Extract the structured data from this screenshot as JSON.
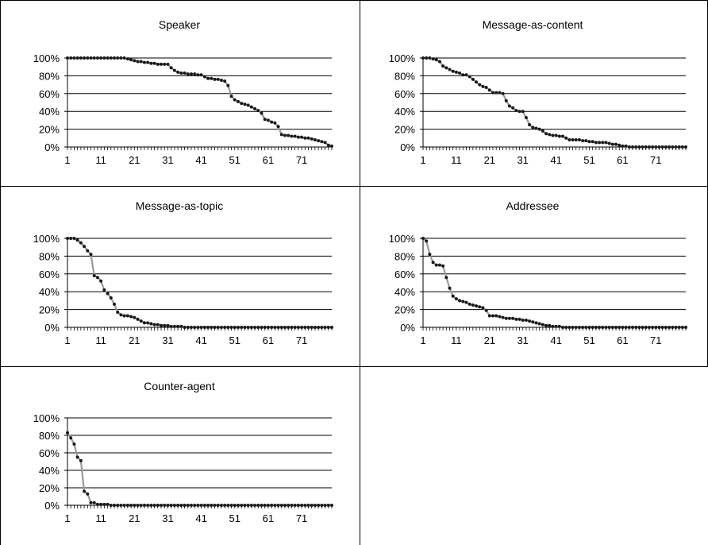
{
  "chart_data": [
    {
      "type": "line",
      "title": "Speaker",
      "xlabel": "",
      "ylabel": "",
      "ylim": [
        0,
        1
      ],
      "yticks": [
        "0%",
        "20%",
        "40%",
        "60%",
        "80%",
        "100%"
      ],
      "xticks": [
        1,
        11,
        21,
        31,
        41,
        51,
        61,
        71
      ],
      "x": [
        1,
        2,
        3,
        4,
        5,
        6,
        7,
        8,
        9,
        10,
        11,
        12,
        13,
        14,
        15,
        16,
        17,
        18,
        19,
        20,
        21,
        22,
        23,
        24,
        25,
        26,
        27,
        28,
        29,
        30,
        31,
        32,
        33,
        34,
        35,
        36,
        37,
        38,
        39,
        40,
        41,
        42,
        43,
        44,
        45,
        46,
        47,
        48,
        49,
        50,
        51,
        52,
        53,
        54,
        55,
        56,
        57,
        58,
        59,
        60,
        61,
        62,
        63,
        64,
        65,
        66,
        67,
        68,
        69,
        70,
        71,
        72,
        73,
        74,
        75,
        76,
        77,
        78,
        79,
        80
      ],
      "values": [
        1,
        1,
        1,
        1,
        1,
        1,
        1,
        1,
        1,
        1,
        1,
        1,
        1,
        1,
        1,
        1,
        1,
        1,
        0.99,
        0.98,
        0.97,
        0.96,
        0.96,
        0.95,
        0.95,
        0.94,
        0.94,
        0.93,
        0.93,
        0.93,
        0.93,
        0.89,
        0.86,
        0.84,
        0.83,
        0.83,
        0.82,
        0.82,
        0.82,
        0.81,
        0.81,
        0.79,
        0.77,
        0.77,
        0.76,
        0.76,
        0.75,
        0.74,
        0.69,
        0.57,
        0.53,
        0.51,
        0.49,
        0.48,
        0.47,
        0.45,
        0.43,
        0.41,
        0.38,
        0.31,
        0.3,
        0.28,
        0.27,
        0.23,
        0.14,
        0.13,
        0.13,
        0.12,
        0.12,
        0.11,
        0.11,
        0.1,
        0.1,
        0.09,
        0.08,
        0.07,
        0.06,
        0.05,
        0.02,
        0.01
      ]
    },
    {
      "type": "line",
      "title": "Message-as-content",
      "xlabel": "",
      "ylabel": "",
      "ylim": [
        0,
        1
      ],
      "yticks": [
        "0%",
        "20%",
        "40%",
        "60%",
        "80%",
        "100%"
      ],
      "xticks": [
        1,
        11,
        21,
        31,
        41,
        51,
        61,
        71
      ],
      "x": [
        1,
        2,
        3,
        4,
        5,
        6,
        7,
        8,
        9,
        10,
        11,
        12,
        13,
        14,
        15,
        16,
        17,
        18,
        19,
        20,
        21,
        22,
        23,
        24,
        25,
        26,
        27,
        28,
        29,
        30,
        31,
        32,
        33,
        34,
        35,
        36,
        37,
        38,
        39,
        40,
        41,
        42,
        43,
        44,
        45,
        46,
        47,
        48,
        49,
        50,
        51,
        52,
        53,
        54,
        55,
        56,
        57,
        58,
        59,
        60,
        61,
        62,
        63,
        64,
        65,
        66,
        67,
        68,
        69,
        70,
        71,
        72,
        73,
        74,
        75,
        76,
        77,
        78,
        79,
        80
      ],
      "values": [
        1,
        1,
        1,
        0.99,
        0.98,
        0.96,
        0.91,
        0.89,
        0.87,
        0.85,
        0.84,
        0.83,
        0.81,
        0.81,
        0.79,
        0.76,
        0.73,
        0.7,
        0.68,
        0.67,
        0.64,
        0.61,
        0.61,
        0.61,
        0.6,
        0.52,
        0.46,
        0.44,
        0.41,
        0.4,
        0.4,
        0.33,
        0.25,
        0.22,
        0.21,
        0.2,
        0.18,
        0.15,
        0.14,
        0.13,
        0.13,
        0.12,
        0.12,
        0.1,
        0.08,
        0.08,
        0.08,
        0.08,
        0.07,
        0.07,
        0.06,
        0.06,
        0.05,
        0.05,
        0.05,
        0.05,
        0.04,
        0.03,
        0.03,
        0.02,
        0.01,
        0.01,
        0,
        0,
        0,
        0,
        0,
        0,
        0,
        0,
        0,
        0,
        0,
        0,
        0,
        0,
        0,
        0,
        0,
        0
      ]
    },
    {
      "type": "line",
      "title": "Message-as-topic",
      "xlabel": "",
      "ylabel": "",
      "ylim": [
        0,
        1
      ],
      "yticks": [
        "0%",
        "20%",
        "40%",
        "60%",
        "80%",
        "100%"
      ],
      "xticks": [
        1,
        11,
        21,
        31,
        41,
        51,
        61,
        71
      ],
      "x": [
        1,
        2,
        3,
        4,
        5,
        6,
        7,
        8,
        9,
        10,
        11,
        12,
        13,
        14,
        15,
        16,
        17,
        18,
        19,
        20,
        21,
        22,
        23,
        24,
        25,
        26,
        27,
        28,
        29,
        30,
        31,
        32,
        33,
        34,
        35,
        36,
        37,
        38,
        39,
        40,
        41,
        42,
        43,
        44,
        45,
        46,
        47,
        48,
        49,
        50,
        51,
        52,
        53,
        54,
        55,
        56,
        57,
        58,
        59,
        60,
        61,
        62,
        63,
        64,
        65,
        66,
        67,
        68,
        69,
        70,
        71,
        72,
        73,
        74,
        75,
        76,
        77,
        78,
        79,
        80
      ],
      "values": [
        1,
        1,
        1,
        0.98,
        0.95,
        0.91,
        0.86,
        0.82,
        0.58,
        0.56,
        0.52,
        0.42,
        0.38,
        0.33,
        0.26,
        0.17,
        0.14,
        0.13,
        0.13,
        0.12,
        0.11,
        0.09,
        0.07,
        0.05,
        0.05,
        0.04,
        0.03,
        0.03,
        0.02,
        0.02,
        0.02,
        0.01,
        0.01,
        0.01,
        0.01,
        0,
        0,
        0,
        0,
        0,
        0,
        0,
        0,
        0,
        0,
        0,
        0,
        0,
        0,
        0,
        0,
        0,
        0,
        0,
        0,
        0,
        0,
        0,
        0,
        0,
        0,
        0,
        0,
        0,
        0,
        0,
        0,
        0,
        0,
        0,
        0,
        0,
        0,
        0,
        0,
        0,
        0,
        0,
        0,
        0
      ]
    },
    {
      "type": "line",
      "title": "Addressee",
      "xlabel": "",
      "ylabel": "",
      "ylim": [
        0,
        1
      ],
      "yticks": [
        "0%",
        "20%",
        "40%",
        "60%",
        "80%",
        "100%"
      ],
      "xticks": [
        1,
        11,
        21,
        31,
        41,
        51,
        61,
        71
      ],
      "x": [
        1,
        2,
        3,
        4,
        5,
        6,
        7,
        8,
        9,
        10,
        11,
        12,
        13,
        14,
        15,
        16,
        17,
        18,
        19,
        20,
        21,
        22,
        23,
        24,
        25,
        26,
        27,
        28,
        29,
        30,
        31,
        32,
        33,
        34,
        35,
        36,
        37,
        38,
        39,
        40,
        41,
        42,
        43,
        44,
        45,
        46,
        47,
        48,
        49,
        50,
        51,
        52,
        53,
        54,
        55,
        56,
        57,
        58,
        59,
        60,
        61,
        62,
        63,
        64,
        65,
        66,
        67,
        68,
        69,
        70,
        71,
        72,
        73,
        74,
        75,
        76,
        77,
        78,
        79,
        80
      ],
      "values": [
        1,
        0.97,
        0.82,
        0.73,
        0.7,
        0.7,
        0.69,
        0.56,
        0.44,
        0.35,
        0.32,
        0.3,
        0.29,
        0.28,
        0.26,
        0.25,
        0.24,
        0.23,
        0.22,
        0.19,
        0.13,
        0.13,
        0.13,
        0.12,
        0.11,
        0.1,
        0.1,
        0.1,
        0.09,
        0.09,
        0.08,
        0.08,
        0.07,
        0.06,
        0.05,
        0.04,
        0.03,
        0.02,
        0.02,
        0.01,
        0.01,
        0.01,
        0,
        0,
        0,
        0,
        0,
        0,
        0,
        0,
        0,
        0,
        0,
        0,
        0,
        0,
        0,
        0,
        0,
        0,
        0,
        0,
        0,
        0,
        0,
        0,
        0,
        0,
        0,
        0,
        0,
        0,
        0,
        0,
        0,
        0,
        0,
        0,
        0,
        0
      ]
    },
    {
      "type": "line",
      "title": "Counter-agent",
      "xlabel": "",
      "ylabel": "",
      "ylim": [
        0,
        1
      ],
      "yticks": [
        "0%",
        "20%",
        "40%",
        "60%",
        "80%",
        "100%"
      ],
      "xticks": [
        1,
        11,
        21,
        31,
        41,
        51,
        61,
        71
      ],
      "x": [
        1,
        2,
        3,
        4,
        5,
        6,
        7,
        8,
        9,
        10,
        11,
        12,
        13,
        14,
        15,
        16,
        17,
        18,
        19,
        20,
        21,
        22,
        23,
        24,
        25,
        26,
        27,
        28,
        29,
        30,
        31,
        32,
        33,
        34,
        35,
        36,
        37,
        38,
        39,
        40,
        41,
        42,
        43,
        44,
        45,
        46,
        47,
        48,
        49,
        50,
        51,
        52,
        53,
        54,
        55,
        56,
        57,
        58,
        59,
        60,
        61,
        62,
        63,
        64,
        65,
        66,
        67,
        68,
        69,
        70,
        71,
        72,
        73,
        74,
        75,
        76,
        77,
        78,
        79,
        80
      ],
      "values": [
        0.83,
        0.77,
        0.7,
        0.55,
        0.51,
        0.16,
        0.13,
        0.03,
        0.03,
        0.01,
        0.01,
        0.01,
        0.01,
        0,
        0,
        0,
        0,
        0,
        0,
        0,
        0,
        0,
        0,
        0,
        0,
        0,
        0,
        0,
        0,
        0,
        0,
        0,
        0,
        0,
        0,
        0,
        0,
        0,
        0,
        0,
        0,
        0,
        0,
        0,
        0,
        0,
        0,
        0,
        0,
        0,
        0,
        0,
        0,
        0,
        0,
        0,
        0,
        0,
        0,
        0,
        0,
        0,
        0,
        0,
        0,
        0,
        0,
        0,
        0,
        0,
        0,
        0,
        0,
        0,
        0,
        0,
        0,
        0,
        0,
        0
      ]
    }
  ],
  "colors": {
    "line": "#9a9a9a",
    "marker": "#1a1a1a",
    "axis": "#000000",
    "gridline": "#000000",
    "text": "#000000",
    "background": "#ffffff"
  }
}
